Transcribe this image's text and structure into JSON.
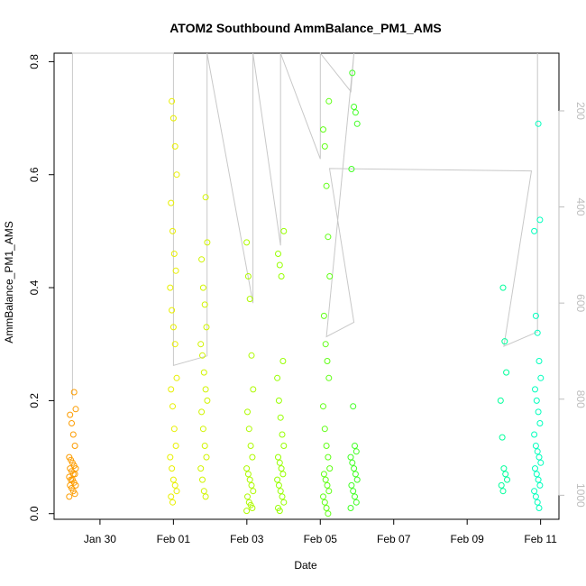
{
  "chart_data": {
    "type": "scatter",
    "title": "ATOM2 Southbound AmmBalance_PM1_AMS",
    "xlabel": "Date",
    "ylabel": "AmmBalance_PM1_AMS",
    "xlim": [
      "2016-01-28T18:00",
      "2016-02-11T12:00"
    ],
    "ylim": [
      -0.01,
      0.815
    ],
    "x_ticks": [
      "Jan 30",
      "Feb 01",
      "Feb 03",
      "Feb 05",
      "Feb 07",
      "Feb 09",
      "Feb 11"
    ],
    "x_tick_dates": [
      "2016-01-30",
      "2016-02-01",
      "2016-02-03",
      "2016-02-05",
      "2016-02-07",
      "2016-02-09",
      "2016-02-11"
    ],
    "y_ticks": [
      0.0,
      0.2,
      0.4,
      0.6,
      0.8
    ],
    "y_tick_labels": [
      "0.0",
      "0.2",
      "0.4",
      "0.6",
      "0.8"
    ],
    "right_axis": {
      "reversed": true,
      "ticks": [
        200,
        400,
        600,
        800,
        1000
      ],
      "range": [
        80,
        1050
      ],
      "color": "#bdbdbd"
    },
    "grid": false,
    "legend": "none",
    "point_colors": "gradient from orange (#ff8c00) through yellow (#ffee00) and green (#00ff00) to cyan (#00ffcc) over time",
    "series": [
      {
        "style": "points",
        "groups": [
          {
            "t": "2016-01-29T06:00",
            "values": [
              0.03,
              0.035,
              0.04,
              0.045,
              0.05,
              0.05,
              0.055,
              0.06,
              0.06,
              0.065,
              0.07,
              0.07,
              0.075,
              0.08,
              0.08,
              0.085,
              0.09,
              0.095,
              0.1,
              0.12,
              0.14,
              0.16,
              0.175,
              0.185,
              0.215
            ]
          },
          {
            "t": "2016-02-01T00:00",
            "values": [
              0.02,
              0.03,
              0.04,
              0.05,
              0.06,
              0.08,
              0.1,
              0.12,
              0.15,
              0.19,
              0.22,
              0.24,
              0.3,
              0.33,
              0.36,
              0.4,
              0.43,
              0.46,
              0.5,
              0.55,
              0.6,
              0.65,
              0.7,
              0.73
            ]
          },
          {
            "t": "2016-02-01T20:00",
            "values": [
              0.03,
              0.04,
              0.06,
              0.08,
              0.1,
              0.12,
              0.15,
              0.18,
              0.2,
              0.22,
              0.25,
              0.28,
              0.3,
              0.33,
              0.37,
              0.4,
              0.45,
              0.48,
              0.56
            ]
          },
          {
            "t": "2016-02-03T02:00",
            "values": [
              0.005,
              0.01,
              0.015,
              0.02,
              0.03,
              0.04,
              0.05,
              0.06,
              0.07,
              0.08,
              0.1,
              0.12,
              0.15,
              0.18,
              0.22,
              0.28,
              0.38,
              0.42,
              0.48
            ]
          },
          {
            "t": "2016-02-03T22:00",
            "values": [
              0.005,
              0.01,
              0.02,
              0.03,
              0.04,
              0.05,
              0.06,
              0.07,
              0.08,
              0.09,
              0.1,
              0.12,
              0.14,
              0.17,
              0.2,
              0.24,
              0.27,
              0.42,
              0.44,
              0.46,
              0.5
            ]
          },
          {
            "t": "2016-02-05T04:00",
            "values": [
              0.0,
              0.01,
              0.02,
              0.03,
              0.04,
              0.05,
              0.06,
              0.07,
              0.08,
              0.1,
              0.12,
              0.15,
              0.19,
              0.24,
              0.27,
              0.3,
              0.35,
              0.42,
              0.49,
              0.58,
              0.65,
              0.68,
              0.73
            ]
          },
          {
            "t": "2016-02-05T22:00",
            "values": [
              0.01,
              0.02,
              0.03,
              0.04,
              0.05,
              0.06,
              0.07,
              0.08,
              0.09,
              0.1,
              0.11,
              0.12,
              0.19,
              0.61,
              0.69,
              0.71,
              0.72,
              0.78
            ]
          },
          {
            "t": "2016-02-10T00:00",
            "values": [
              0.04,
              0.05,
              0.06,
              0.07,
              0.08,
              0.135,
              0.2,
              0.25,
              0.305,
              0.4
            ]
          },
          {
            "t": "2016-02-10T22:00",
            "values": [
              0.01,
              0.02,
              0.03,
              0.04,
              0.05,
              0.06,
              0.07,
              0.08,
              0.09,
              0.1,
              0.11,
              0.12,
              0.14,
              0.16,
              0.18,
              0.2,
              0.22,
              0.24,
              0.27,
              0.32,
              0.35,
              0.5,
              0.52,
              0.69
            ]
          }
        ]
      },
      {
        "style": "line",
        "axis": "right",
        "color": "#c8c8c8",
        "description": "grey trajectory line on right axis scale",
        "points": [
          [
            "2016-01-29T06:00",
            80
          ],
          [
            "2016-01-29T06:00",
            800
          ],
          [
            "2016-01-29T06:00",
            80
          ],
          [
            "2016-02-01T00:00",
            80
          ],
          [
            "2016-02-01T00:00",
            730
          ],
          [
            "2016-02-01T22:00",
            710
          ],
          [
            "2016-02-01T22:00",
            80
          ],
          [
            "2016-02-03T04:00",
            600
          ],
          [
            "2016-02-03T04:00",
            80
          ],
          [
            "2016-02-03T22:00",
            480
          ],
          [
            "2016-02-03T22:00",
            80
          ],
          [
            "2016-02-05T00:00",
            300
          ],
          [
            "2016-02-05T00:00",
            80
          ],
          [
            "2016-02-05T20:00",
            160
          ],
          [
            "2016-02-05T22:00",
            80
          ],
          [
            "2016-02-05T04:00",
            670
          ],
          [
            "2016-02-05T22:00",
            640
          ],
          [
            "2016-02-05T06:00",
            320
          ],
          [
            "2016-02-10T18:00",
            325
          ],
          [
            "2016-02-10T00:00",
            690
          ],
          [
            "2016-02-10T22:00",
            660
          ],
          [
            "2016-02-10T22:00",
            80
          ]
        ]
      }
    ]
  }
}
